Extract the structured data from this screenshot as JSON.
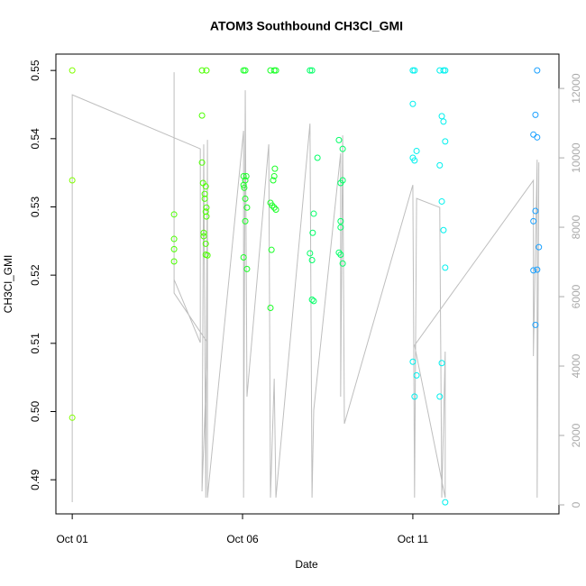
{
  "chart_data": {
    "type": "scatter",
    "title": "ATOM3 Southbound CH3Cl_GMI",
    "x_label": "Date",
    "y_label": "CH3Cl_GMI",
    "xlim": [
      0.52,
      15.29
    ],
    "ylim": [
      0.485,
      0.5524
    ],
    "y2lim": [
      -260,
      12990
    ],
    "xticks": [
      {
        "value": 1,
        "label": "Oct 01"
      },
      {
        "value": 6,
        "label": "Oct 06"
      },
      {
        "value": 11,
        "label": "Oct 11"
      }
    ],
    "yticks": [
      0.49,
      {
        "value": 0.5,
        "label": "0.50"
      },
      0.51,
      0.52,
      0.53,
      0.54,
      0.55
    ],
    "y2ticks": [
      0,
      2000,
      4000,
      6000,
      8000,
      10000,
      12000
    ],
    "series": [
      {
        "color": "#80ff00",
        "x": [
          1,
          1,
          1
        ],
        "values": [
          0.55,
          0.5339,
          0.4991
        ]
      },
      {
        "color": "#4cff00",
        "x": [
          3.99,
          3.99,
          3.99,
          3.99,
          4.81,
          4.81,
          4.84,
          4.86,
          4.89,
          4.92,
          4.89,
          4.94,
          4.92,
          4.94,
          4.86,
          4.92,
          4.92,
          4.97,
          4.81,
          4.94
        ],
        "values": [
          0.5289,
          0.5253,
          0.5238,
          0.522,
          0.5434,
          0.5365,
          0.5335,
          0.5262,
          0.5319,
          0.533,
          0.5312,
          0.5299,
          0.5293,
          0.5286,
          0.5257,
          0.5246,
          0.523,
          0.5229,
          0.55,
          0.55
        ]
      },
      {
        "color": "#19ff26",
        "x": [
          6.03,
          6.08,
          6.03,
          6.03,
          6.05,
          6.08,
          6.11,
          6.08,
          6.13,
          6.08,
          6.03,
          6.13,
          6.82,
          6.93,
          6.98,
          6.82,
          6.87,
          6.93,
          6.98,
          6.9,
          6.95,
          6.93,
          6.85,
          6.82
        ],
        "values": [
          0.55,
          0.55,
          0.5345,
          0.5332,
          0.5328,
          0.5339,
          0.5345,
          0.5312,
          0.5299,
          0.5279,
          0.5226,
          0.5209,
          0.55,
          0.55,
          0.55,
          0.5306,
          0.5302,
          0.5299,
          0.5296,
          0.5339,
          0.5356,
          0.5345,
          0.5237,
          0.5152
        ]
      },
      {
        "color": "#00ff66",
        "x": [
          7.98,
          8.04,
          7.98,
          8.04,
          8.06,
          8.09,
          8.2,
          8.04,
          8.09,
          8.83,
          8.94,
          8.94,
          8.88,
          8.88,
          8.88,
          8.83,
          8.88,
          8.94
        ],
        "values": [
          0.55,
          0.55,
          0.5232,
          0.5222,
          0.5262,
          0.529,
          0.5372,
          0.5164,
          0.5162,
          0.5398,
          0.5385,
          0.5339,
          0.5335,
          0.5279,
          0.527,
          0.5233,
          0.523,
          0.5217
        ]
      },
      {
        "color": "#00f0ee",
        "x": [
          11.0,
          11.05,
          11.0,
          11.0,
          11.05,
          11.11,
          11.0,
          11.11,
          11.05,
          11.79,
          11.9,
          11.95,
          11.85,
          11.9,
          11.95,
          11.79,
          11.85,
          11.9,
          11.95,
          11.85,
          11.79,
          11.95
        ],
        "values": [
          0.55,
          0.55,
          0.5451,
          0.5372,
          0.5368,
          0.5382,
          0.5073,
          0.5053,
          0.5022,
          0.55,
          0.55,
          0.55,
          0.5433,
          0.5425,
          0.5396,
          0.5361,
          0.5308,
          0.5266,
          0.5211,
          0.5071,
          0.5022,
          0.4867
        ]
      },
      {
        "color": "#1aa0ff",
        "x": [
          14.65,
          14.6,
          14.54,
          14.65,
          14.6,
          14.54,
          14.7,
          14.65,
          14.54,
          14.6
        ],
        "values": [
          0.55,
          0.5435,
          0.5406,
          0.5402,
          0.5294,
          0.5279,
          0.5241,
          0.5208,
          0.5207,
          0.5127
        ]
      },
      {
        "color": "#bebebe",
        "axis": "y2",
        "line": true,
        "x": [
          1,
          1,
          4.76,
          4.76,
          3.99,
          3.99,
          3.99,
          4.97,
          4.81,
          4.86,
          4.92,
          4.97,
          4.97,
          6.03,
          6.03,
          6.08,
          6.13,
          6.77,
          6.82,
          6.93,
          6.98,
          7.98,
          8.04,
          8.09,
          8.88,
          8.88,
          8.94,
          8.99,
          11.0,
          11.05,
          11.11,
          11.79,
          11.85,
          11.95,
          11.95,
          11.05,
          14.54,
          14.54,
          14.65,
          14.65,
          14.7
        ],
        "values": [
          78,
          11818,
          10260,
          4675,
          6493,
          12466,
          6103,
          4675,
          390,
          10390,
          208,
          10519,
          208,
          10779,
          208,
          11948,
          3117,
          10390,
          208,
          3636,
          208,
          10987,
          208,
          2727,
          10130,
          3117,
          10649,
          2338,
          9220,
          208,
          8830,
          8571,
          208,
          4415,
          208,
          4597,
          9351,
          4286,
          9948,
          208,
          9870
        ]
      }
    ]
  }
}
